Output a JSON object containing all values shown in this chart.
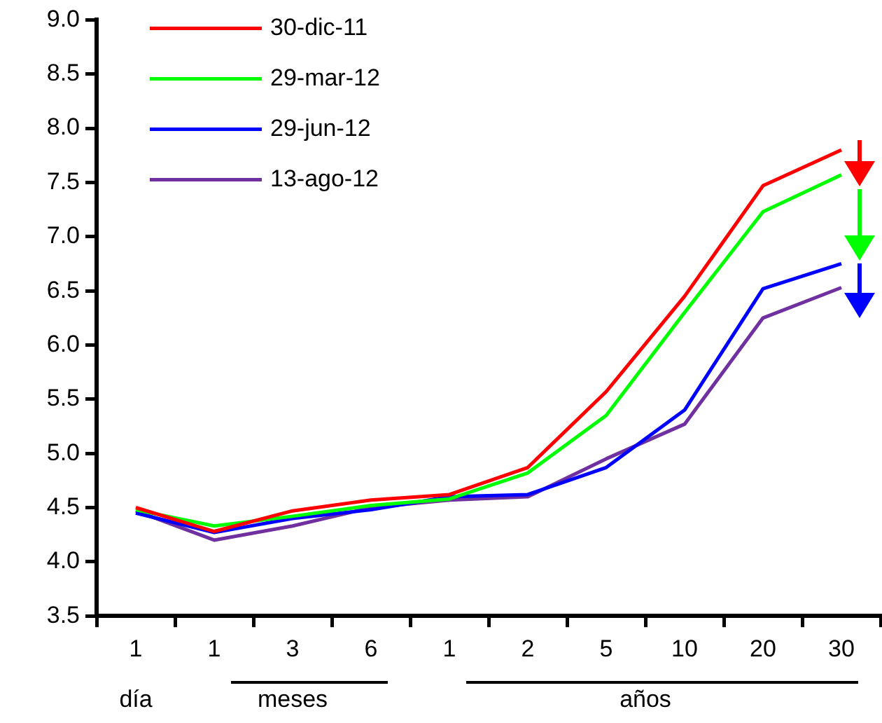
{
  "chart_data": {
    "type": "line",
    "categories": [
      "1",
      "1",
      "3",
      "6",
      "1",
      "2",
      "5",
      "10",
      "20",
      "30"
    ],
    "series": [
      {
        "name": "30-dic-11",
        "color": "#ff0000",
        "values": [
          4.5,
          4.28,
          4.47,
          4.57,
          4.62,
          4.87,
          5.57,
          6.45,
          7.47,
          7.8
        ]
      },
      {
        "name": "29-mar-12",
        "color": "#00ff00",
        "values": [
          4.48,
          4.33,
          4.42,
          4.52,
          4.58,
          4.82,
          5.35,
          6.3,
          7.23,
          7.57
        ]
      },
      {
        "name": "29-jun-12",
        "color": "#0000ff",
        "values": [
          4.45,
          4.27,
          4.4,
          4.48,
          4.6,
          4.62,
          4.87,
          5.4,
          6.52,
          6.75
        ]
      },
      {
        "name": "13-ago-12",
        "color": "#7030a0",
        "values": [
          4.47,
          4.2,
          4.33,
          4.5,
          4.57,
          4.6,
          4.95,
          5.27,
          6.25,
          6.53
        ]
      }
    ],
    "ylim": [
      3.5,
      9
    ],
    "yticks": [
      {
        "value": 3.5,
        "label": "3.5"
      },
      {
        "value": 4,
        "label": "4.0"
      },
      {
        "value": 4.5,
        "label": "4.5"
      },
      {
        "value": 5,
        "label": "5.0"
      },
      {
        "value": 5.5,
        "label": "5.5"
      },
      {
        "value": 6,
        "label": "6.0"
      },
      {
        "value": 6.5,
        "label": "6.5"
      },
      {
        "value": 7,
        "label": "7.0"
      },
      {
        "value": 7.5,
        "label": "7.5"
      },
      {
        "value": 8,
        "label": "8.0"
      },
      {
        "value": 8.5,
        "label": "8.5"
      },
      {
        "value": 9,
        "label": "9.0"
      }
    ],
    "annotations": [
      "día",
      "meses",
      "años"
    ],
    "grid": false,
    "legend": "top left",
    "marker": "none",
    "line_style": "solid"
  }
}
